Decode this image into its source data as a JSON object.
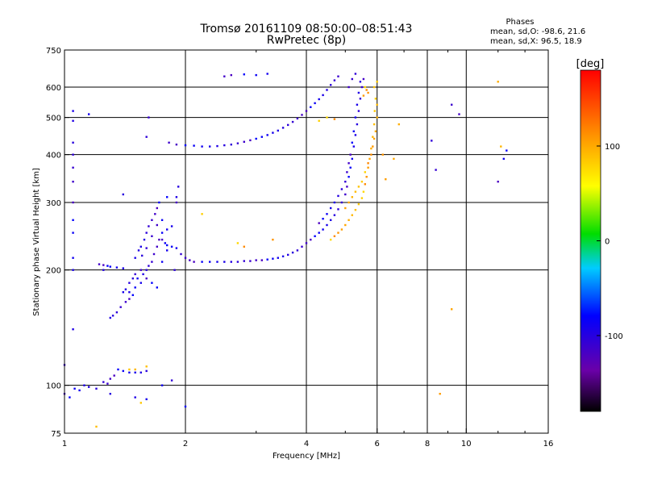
{
  "chart_data": {
    "type": "scatter",
    "title": "Tromsø 20161109 08:50:00–08:51:43",
    "subtitle": "RwPretec (8p)",
    "xlabel": "Frequency [MHz]",
    "ylabel": "Stationary phase Virtual Height [km]",
    "xscale": "log",
    "yscale": "log",
    "xlim": [
      1,
      16
    ],
    "ylim": [
      75,
      750
    ],
    "x_ticks": [
      "1",
      "2",
      "4",
      "6",
      "8",
      "10",
      "16"
    ],
    "y_ticks": [
      "75",
      "100",
      "200",
      "300",
      "400",
      "500",
      "600",
      "750"
    ],
    "grid": true,
    "legend": {
      "title": "Phases",
      "lines": [
        "mean, sd,O: -98.6, 21.6",
        "mean, sd,X:  96.5, 18.9"
      ],
      "placement": "top-right"
    },
    "colorbar": {
      "label": "[deg]",
      "min": -180,
      "max": 180,
      "ticks": [
        "100",
        "0",
        "-100"
      ],
      "colormap": "rainbow"
    },
    "series": [
      {
        "name": "O",
        "color_value": -100,
        "points": [
          [
            1.0,
            95
          ],
          [
            1.03,
            93
          ],
          [
            1.06,
            98
          ],
          [
            1.09,
            97
          ],
          [
            1.12,
            100
          ],
          [
            1.15,
            99
          ],
          [
            1.2,
            98
          ],
          [
            1.25,
            102
          ],
          [
            1.28,
            101
          ],
          [
            1.3,
            104
          ],
          [
            1.33,
            106
          ],
          [
            1.36,
            110
          ],
          [
            1.4,
            109
          ],
          [
            1.45,
            108
          ],
          [
            1.5,
            108
          ],
          [
            1.55,
            108
          ],
          [
            1.6,
            109
          ],
          [
            1.85,
            103
          ],
          [
            1.0,
            113
          ],
          [
            1.22,
            207
          ],
          [
            1.25,
            206
          ],
          [
            1.28,
            205
          ],
          [
            1.3,
            204
          ],
          [
            1.35,
            203
          ],
          [
            1.4,
            202
          ],
          [
            1.3,
            150
          ],
          [
            1.32,
            152
          ],
          [
            1.35,
            155
          ],
          [
            1.38,
            160
          ],
          [
            1.42,
            165
          ],
          [
            1.45,
            168
          ],
          [
            1.48,
            172
          ],
          [
            1.5,
            180
          ],
          [
            1.52,
            190
          ],
          [
            1.55,
            185
          ],
          [
            1.57,
            195
          ],
          [
            1.6,
            200
          ],
          [
            1.62,
            205
          ],
          [
            1.65,
            210
          ],
          [
            1.67,
            220
          ],
          [
            1.7,
            230
          ],
          [
            1.72,
            240
          ],
          [
            1.75,
            250
          ],
          [
            1.78,
            235
          ],
          [
            1.8,
            225
          ],
          [
            1.55,
            230
          ],
          [
            1.58,
            240
          ],
          [
            1.6,
            250
          ],
          [
            1.62,
            260
          ],
          [
            1.65,
            270
          ],
          [
            1.68,
            280
          ],
          [
            1.7,
            290
          ],
          [
            1.72,
            300
          ],
          [
            1.75,
            270
          ],
          [
            1.8,
            255
          ],
          [
            1.5,
            215
          ],
          [
            1.53,
            225
          ],
          [
            1.56,
            218
          ],
          [
            1.6,
            228
          ],
          [
            1.65,
            245
          ],
          [
            1.7,
            262
          ],
          [
            1.75,
            240
          ],
          [
            1.8,
            232
          ],
          [
            1.85,
            230
          ],
          [
            1.9,
            228
          ],
          [
            1.4,
            175
          ],
          [
            1.42,
            178
          ],
          [
            1.45,
            185
          ],
          [
            1.48,
            190
          ],
          [
            1.5,
            195
          ],
          [
            1.55,
            200
          ],
          [
            1.6,
            190
          ],
          [
            1.65,
            185
          ],
          [
            1.7,
            180
          ],
          [
            1.75,
            210
          ],
          [
            1.85,
            260
          ],
          [
            1.9,
            310
          ],
          [
            1.92,
            330
          ],
          [
            1.88,
            200
          ],
          [
            1.95,
            220
          ],
          [
            2.0,
            215
          ],
          [
            2.05,
            212
          ],
          [
            2.1,
            210
          ],
          [
            2.2,
            210
          ],
          [
            2.3,
            210
          ],
          [
            2.4,
            210
          ],
          [
            2.5,
            210
          ],
          [
            2.6,
            210
          ],
          [
            2.7,
            210
          ],
          [
            2.8,
            211
          ],
          [
            2.9,
            211
          ],
          [
            3.0,
            212
          ],
          [
            3.1,
            212
          ],
          [
            3.2,
            213
          ],
          [
            3.3,
            214
          ],
          [
            3.4,
            215
          ],
          [
            3.5,
            217
          ],
          [
            3.6,
            219
          ],
          [
            3.7,
            222
          ],
          [
            3.8,
            225
          ],
          [
            3.9,
            230
          ],
          [
            4.0,
            235
          ],
          [
            4.1,
            240
          ],
          [
            4.2,
            245
          ],
          [
            4.3,
            250
          ],
          [
            4.4,
            255
          ],
          [
            4.5,
            262
          ],
          [
            4.6,
            270
          ],
          [
            4.7,
            278
          ],
          [
            4.8,
            288
          ],
          [
            4.9,
            300
          ],
          [
            5.0,
            315
          ],
          [
            5.05,
            330
          ],
          [
            5.1,
            350
          ],
          [
            5.15,
            370
          ],
          [
            5.2,
            390
          ],
          [
            5.25,
            420
          ],
          [
            5.3,
            450
          ],
          [
            5.35,
            480
          ],
          [
            5.4,
            520
          ],
          [
            5.45,
            560
          ],
          [
            5.5,
            600
          ],
          [
            5.55,
            630
          ],
          [
            4.3,
            265
          ],
          [
            4.4,
            272
          ],
          [
            4.5,
            280
          ],
          [
            4.6,
            290
          ],
          [
            4.7,
            300
          ],
          [
            4.8,
            312
          ],
          [
            4.9,
            325
          ],
          [
            5.0,
            340
          ],
          [
            5.05,
            360
          ],
          [
            5.1,
            380
          ],
          [
            5.15,
            400
          ],
          [
            5.2,
            430
          ],
          [
            5.25,
            460
          ],
          [
            5.3,
            500
          ],
          [
            5.35,
            540
          ],
          [
            5.4,
            580
          ],
          [
            5.45,
            620
          ],
          [
            5.3,
            650
          ],
          [
            5.2,
            630
          ],
          [
            5.1,
            600
          ],
          [
            1.9,
            425
          ],
          [
            2.0,
            423
          ],
          [
            2.1,
            422
          ],
          [
            2.2,
            420
          ],
          [
            2.3,
            420
          ],
          [
            2.4,
            421
          ],
          [
            2.5,
            423
          ],
          [
            2.6,
            425
          ],
          [
            2.7,
            428
          ],
          [
            2.8,
            432
          ],
          [
            2.9,
            436
          ],
          [
            3.0,
            440
          ],
          [
            3.1,
            445
          ],
          [
            3.2,
            450
          ],
          [
            3.3,
            456
          ],
          [
            3.4,
            462
          ],
          [
            3.5,
            470
          ],
          [
            3.6,
            478
          ],
          [
            3.7,
            487
          ],
          [
            3.8,
            497
          ],
          [
            3.9,
            508
          ],
          [
            4.0,
            520
          ],
          [
            4.1,
            532
          ],
          [
            4.2,
            545
          ],
          [
            4.3,
            558
          ],
          [
            4.4,
            572
          ],
          [
            4.5,
            590
          ],
          [
            4.6,
            608
          ],
          [
            4.7,
            625
          ],
          [
            4.8,
            640
          ],
          [
            2.5,
            640
          ],
          [
            2.6,
            645
          ],
          [
            2.8,
            648
          ],
          [
            3.0,
            645
          ],
          [
            3.2,
            650
          ],
          [
            1.05,
            520
          ],
          [
            1.05,
            490
          ],
          [
            1.05,
            430
          ],
          [
            1.05,
            400
          ],
          [
            1.05,
            370
          ],
          [
            1.05,
            340
          ],
          [
            1.05,
            300
          ],
          [
            1.05,
            270
          ],
          [
            1.05,
            250
          ],
          [
            1.05,
            215
          ],
          [
            1.05,
            200
          ],
          [
            1.05,
            140
          ],
          [
            1.4,
            315
          ],
          [
            1.6,
            445
          ],
          [
            1.62,
            500
          ],
          [
            1.82,
            430
          ],
          [
            1.9,
            300
          ],
          [
            1.8,
            310
          ],
          [
            2.0,
            88
          ],
          [
            1.75,
            100
          ],
          [
            1.6,
            92
          ],
          [
            1.5,
            93
          ],
          [
            1.3,
            95
          ],
          [
            8.2,
            435
          ],
          [
            8.4,
            365
          ],
          [
            9.2,
            540
          ],
          [
            9.6,
            510
          ],
          [
            12.0,
            340
          ],
          [
            12.6,
            410
          ],
          [
            12.4,
            390
          ],
          [
            1.15,
            510
          ],
          [
            1.45,
            175
          ],
          [
            1.25,
            200
          ]
        ]
      },
      {
        "name": "X",
        "color_value": 96.5,
        "points": [
          [
            4.6,
            240
          ],
          [
            4.7,
            245
          ],
          [
            4.8,
            250
          ],
          [
            4.9,
            255
          ],
          [
            5.0,
            262
          ],
          [
            5.1,
            270
          ],
          [
            5.2,
            278
          ],
          [
            5.3,
            287
          ],
          [
            5.4,
            297
          ],
          [
            5.5,
            308
          ],
          [
            5.55,
            320
          ],
          [
            5.6,
            335
          ],
          [
            5.65,
            350
          ],
          [
            5.7,
            370
          ],
          [
            5.75,
            390
          ],
          [
            5.8,
            415
          ],
          [
            5.85,
            445
          ],
          [
            5.9,
            480
          ],
          [
            5.92,
            520
          ],
          [
            5.95,
            560
          ],
          [
            5.6,
            600
          ],
          [
            5.65,
            590
          ],
          [
            5.7,
            580
          ],
          [
            5.55,
            570
          ],
          [
            5.0,
            290
          ],
          [
            5.1,
            300
          ],
          [
            5.2,
            310
          ],
          [
            5.3,
            320
          ],
          [
            5.4,
            330
          ],
          [
            5.5,
            340
          ],
          [
            5.6,
            360
          ],
          [
            5.7,
            380
          ],
          [
            5.8,
            400
          ],
          [
            5.85,
            420
          ],
          [
            5.9,
            440
          ],
          [
            5.95,
            460
          ],
          [
            6.0,
            500
          ],
          [
            6.0,
            540
          ],
          [
            5.9,
            600
          ],
          [
            6.0,
            620
          ],
          [
            4.3,
            490
          ],
          [
            4.5,
            500
          ],
          [
            4.7,
            495
          ],
          [
            6.2,
            400
          ],
          [
            6.3,
            345
          ],
          [
            6.6,
            390
          ],
          [
            6.8,
            480
          ],
          [
            1.5,
            110
          ],
          [
            1.6,
            112
          ],
          [
            1.55,
            90
          ],
          [
            2.2,
            280
          ],
          [
            2.7,
            235
          ],
          [
            2.8,
            230
          ],
          [
            3.3,
            240
          ],
          [
            8.6,
            95
          ],
          [
            9.2,
            158
          ],
          [
            12.0,
            620
          ],
          [
            12.2,
            420
          ],
          [
            1.2,
            78
          ],
          [
            1.45,
            110
          ]
        ]
      }
    ]
  }
}
